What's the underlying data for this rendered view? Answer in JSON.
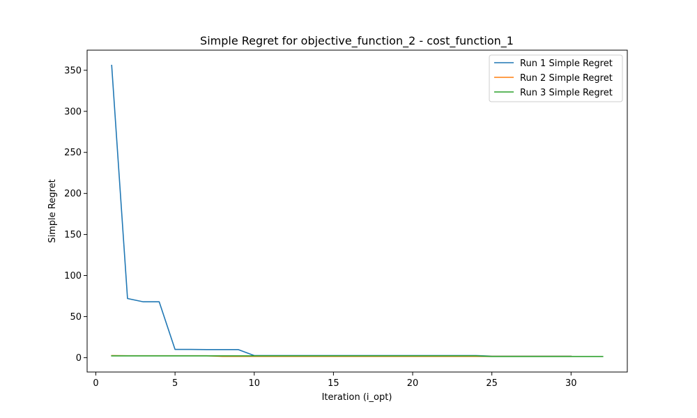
{
  "chart_data": {
    "type": "line",
    "title": "Simple Regret for objective_function_2 - cost_function_1",
    "xlabel": "Iteration (i_opt)",
    "ylabel": "Simple Regret",
    "xlim": [
      -0.55,
      33.55
    ],
    "ylim": [
      -17.5,
      374.5
    ],
    "xticks": [
      0,
      5,
      10,
      15,
      20,
      25,
      30
    ],
    "yticks": [
      0,
      50,
      100,
      150,
      200,
      250,
      300,
      350
    ],
    "grid": false,
    "legend_position": "top-right",
    "series": [
      {
        "name": "Run 1 Simple Regret",
        "color": "#1f77b4",
        "x": [
          1,
          2,
          3,
          4,
          5,
          6,
          7,
          8,
          9,
          10,
          11,
          12,
          13,
          14,
          15,
          16,
          17,
          18,
          19,
          20,
          21,
          22,
          23,
          24,
          25,
          26,
          27,
          28,
          29,
          30
        ],
        "y": [
          356,
          72,
          68,
          68,
          10,
          10,
          9.8,
          9.8,
          9.8,
          2.5,
          2.5,
          2.5,
          2.5,
          2.5,
          2.5,
          2.5,
          2.5,
          2.5,
          2.5,
          2.5,
          2.5,
          2.5,
          2.5,
          2.5,
          1.8,
          1.8,
          1.8,
          1.8,
          1.8,
          1.8
        ]
      },
      {
        "name": "Run 2 Simple Regret",
        "color": "#ff7f0e",
        "x": [
          1,
          2,
          3,
          4,
          5,
          6,
          7,
          8,
          9,
          10,
          11,
          12,
          13,
          14,
          15,
          16,
          17,
          18,
          19,
          20,
          21,
          22,
          23,
          24,
          25,
          26,
          27,
          28,
          29,
          30
        ],
        "y": [
          2.5,
          2.3,
          2.3,
          2.3,
          2.3,
          2.3,
          2.3,
          1.5,
          1.5,
          1.5,
          1.5,
          1.5,
          1.5,
          1.5,
          1.5,
          1.5,
          1.5,
          1.5,
          1.5,
          1.5,
          1.5,
          1.5,
          1.5,
          1.5,
          1.5,
          1.5,
          1.5,
          1.5,
          1.5,
          1.5
        ]
      },
      {
        "name": "Run 3 Simple Regret",
        "color": "#2ca02c",
        "x": [
          1,
          2,
          3,
          4,
          5,
          6,
          7,
          8,
          9,
          10,
          11,
          12,
          13,
          14,
          15,
          16,
          17,
          18,
          19,
          20,
          21,
          22,
          23,
          24,
          25,
          26,
          27,
          28,
          29,
          30,
          31,
          32
        ],
        "y": [
          2.2,
          2.2,
          2.2,
          2.2,
          2.2,
          2.2,
          2.2,
          2.2,
          2.2,
          2.2,
          2.2,
          2.2,
          2.2,
          2.2,
          2.2,
          2.2,
          2.2,
          2.2,
          2.2,
          2.2,
          2.2,
          2.2,
          2.2,
          2.2,
          1.4,
          1.4,
          1.4,
          1.4,
          1.4,
          1.4,
          1.4,
          1.4
        ]
      }
    ]
  }
}
